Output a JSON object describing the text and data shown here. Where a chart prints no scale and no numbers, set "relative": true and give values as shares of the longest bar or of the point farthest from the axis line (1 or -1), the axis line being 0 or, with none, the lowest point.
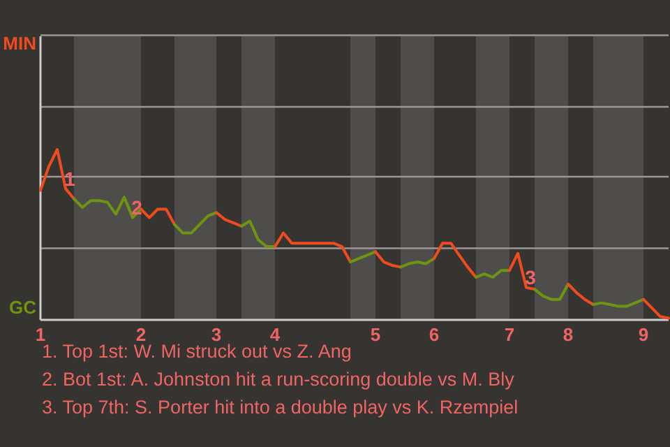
{
  "chart_data": {
    "type": "line",
    "relative": true,
    "categories": [
      "1",
      null,
      null,
      null,
      null,
      null,
      null,
      null,
      null,
      null,
      null,
      null,
      "2",
      null,
      null,
      null,
      null,
      null,
      null,
      null,
      null,
      "3",
      null,
      null,
      null,
      null,
      null,
      null,
      "4",
      null,
      null,
      null,
      null,
      null,
      null,
      null,
      null,
      null,
      null,
      null,
      "5",
      null,
      null,
      null,
      null,
      null,
      null,
      "6",
      null,
      null,
      null,
      null,
      null,
      null,
      null,
      null,
      "7",
      null,
      null,
      null,
      null,
      null,
      null,
      "8",
      null,
      null,
      null,
      null,
      null,
      null,
      null,
      null,
      "9",
      null,
      null,
      null
    ],
    "legend": "left",
    "marker": "none",
    "line_style": "solid",
    "ref_lines": [
      {
        "axis": "y",
        "value": 0.42,
        "color": "#9a9896"
      },
      {
        "axis": "y",
        "value": 0.84,
        "color": "#9a9896"
      },
      {
        "axis": "y",
        "value": 1.25,
        "color": "#9a9896"
      },
      {
        "axis": "y",
        "value": 1.67,
        "color": "#9a9896"
      }
    ],
    "series": [
      {
        "name": "MIN",
        "color": "#f04b1e",
        "values": [
          0.76,
          0.9,
          1,
          0.77,
          0.71,
          null,
          null,
          null,
          null,
          null,
          null,
          null,
          null,
          null,
          null,
          null,
          null,
          null,
          null,
          null,
          null,
          null,
          null,
          null,
          null,
          null,
          null,
          null,
          null,
          null,
          null,
          null,
          null,
          null,
          null,
          null,
          null,
          null,
          null,
          null,
          null,
          null,
          null,
          null,
          null,
          null,
          null,
          null,
          null,
          null,
          null,
          null,
          null,
          null,
          null,
          null,
          null,
          null,
          null,
          null,
          null,
          null,
          null,
          null,
          null,
          null,
          null,
          null,
          null,
          null,
          null,
          null,
          null,
          null,
          null,
          null
        ]
      },
      {
        "name": "GC",
        "color": "#6e9410",
        "values": [
          null,
          null,
          null,
          null,
          0.71,
          0.66,
          0.7,
          0.7,
          0.69,
          0.62,
          0.72,
          0.6,
          0.65,
          null,
          null,
          null,
          null,
          null,
          null,
          null,
          null,
          null,
          null,
          null,
          null,
          null,
          null,
          null,
          null,
          null,
          null,
          null,
          null,
          null,
          null,
          null,
          null,
          null,
          null,
          null,
          null,
          null,
          null,
          null,
          null,
          null,
          null,
          null,
          null,
          null,
          null,
          null,
          null,
          null,
          null,
          null,
          null,
          null,
          null,
          null,
          null,
          null,
          null,
          null,
          null,
          null,
          null,
          null,
          null,
          null,
          null,
          null,
          null,
          null,
          null,
          null
        ]
      },
      {
        "color": "#f04b1e",
        "values": [
          null,
          null,
          null,
          null,
          null,
          null,
          null,
          null,
          null,
          null,
          null,
          null,
          0.65,
          0.6,
          0.65,
          0.65,
          0.56,
          null,
          null,
          null,
          null,
          null,
          null,
          null,
          null,
          null,
          null,
          null,
          null,
          null,
          null,
          null,
          null,
          null,
          null,
          null,
          null,
          null,
          null,
          null,
          null,
          null,
          null,
          null,
          null,
          null,
          null,
          null,
          null,
          null,
          null,
          null,
          null,
          null,
          null,
          null,
          null,
          null,
          null,
          null,
          null,
          null,
          null,
          null,
          null,
          null,
          null,
          null,
          null,
          null,
          null,
          null,
          null,
          null,
          null,
          null
        ]
      },
      {
        "color": "#6e9410",
        "values": [
          null,
          null,
          null,
          null,
          null,
          null,
          null,
          null,
          null,
          null,
          null,
          null,
          null,
          null,
          null,
          null,
          0.56,
          0.51,
          0.51,
          0.56,
          0.61,
          0.63,
          null,
          null,
          null,
          null,
          null,
          null,
          null,
          null,
          null,
          null,
          null,
          null,
          null,
          null,
          null,
          null,
          null,
          null,
          null,
          null,
          null,
          null,
          null,
          null,
          null,
          null,
          null,
          null,
          null,
          null,
          null,
          null,
          null,
          null,
          null,
          null,
          null,
          null,
          null,
          null,
          null,
          null,
          null,
          null,
          null,
          null,
          null,
          null,
          null,
          null,
          null,
          null,
          null,
          null
        ]
      },
      {
        "color": "#f04b1e",
        "values": [
          null,
          null,
          null,
          null,
          null,
          null,
          null,
          null,
          null,
          null,
          null,
          null,
          null,
          null,
          null,
          null,
          null,
          null,
          null,
          null,
          null,
          0.63,
          0.59,
          0.57,
          0.55,
          null,
          null,
          null,
          null,
          null,
          null,
          null,
          null,
          null,
          null,
          null,
          null,
          null,
          null,
          null,
          null,
          null,
          null,
          null,
          null,
          null,
          null,
          null,
          null,
          null,
          null,
          null,
          null,
          null,
          null,
          null,
          null,
          null,
          null,
          null,
          null,
          null,
          null,
          null,
          null,
          null,
          null,
          null,
          null,
          null,
          null,
          null,
          null,
          null,
          null,
          null
        ]
      },
      {
        "color": "#6e9410",
        "values": [
          null,
          null,
          null,
          null,
          null,
          null,
          null,
          null,
          null,
          null,
          null,
          null,
          null,
          null,
          null,
          null,
          null,
          null,
          null,
          null,
          null,
          null,
          null,
          null,
          0.55,
          0.58,
          0.47,
          0.43,
          0.43,
          null,
          null,
          null,
          null,
          null,
          null,
          null,
          null,
          null,
          null,
          null,
          null,
          null,
          null,
          null,
          null,
          null,
          null,
          null,
          null,
          null,
          null,
          null,
          null,
          null,
          null,
          null,
          null,
          null,
          null,
          null,
          null,
          null,
          null,
          null,
          null,
          null,
          null,
          null,
          null,
          null,
          null,
          null,
          null,
          null,
          null,
          null
        ]
      },
      {
        "color": "#f04b1e",
        "values": [
          null,
          null,
          null,
          null,
          null,
          null,
          null,
          null,
          null,
          null,
          null,
          null,
          null,
          null,
          null,
          null,
          null,
          null,
          null,
          null,
          null,
          null,
          null,
          null,
          null,
          null,
          null,
          null,
          0.43,
          0.51,
          0.45,
          0.45,
          0.45,
          0.45,
          0.45,
          0.45,
          0.43,
          0.34,
          null,
          null,
          null,
          null,
          null,
          null,
          null,
          null,
          null,
          null,
          null,
          null,
          null,
          null,
          null,
          null,
          null,
          null,
          null,
          null,
          null,
          null,
          null,
          null,
          null,
          null,
          null,
          null,
          null,
          null,
          null,
          null,
          null,
          null,
          null,
          null,
          null,
          null
        ]
      },
      {
        "color": "#6e9410",
        "values": [
          null,
          null,
          null,
          null,
          null,
          null,
          null,
          null,
          null,
          null,
          null,
          null,
          null,
          null,
          null,
          null,
          null,
          null,
          null,
          null,
          null,
          null,
          null,
          null,
          null,
          null,
          null,
          null,
          null,
          null,
          null,
          null,
          null,
          null,
          null,
          null,
          null,
          0.34,
          0.36,
          0.38,
          0.4,
          null,
          null,
          null,
          null,
          null,
          null,
          null,
          null,
          null,
          null,
          null,
          null,
          null,
          null,
          null,
          null,
          null,
          null,
          null,
          null,
          null,
          null,
          null,
          null,
          null,
          null,
          null,
          null,
          null,
          null,
          null,
          null,
          null,
          null,
          null
        ]
      },
      {
        "color": "#f04b1e",
        "values": [
          null,
          null,
          null,
          null,
          null,
          null,
          null,
          null,
          null,
          null,
          null,
          null,
          null,
          null,
          null,
          null,
          null,
          null,
          null,
          null,
          null,
          null,
          null,
          null,
          null,
          null,
          null,
          null,
          null,
          null,
          null,
          null,
          null,
          null,
          null,
          null,
          null,
          null,
          null,
          null,
          0.4,
          0.34,
          0.32,
          0.31,
          null,
          null,
          null,
          null,
          null,
          null,
          null,
          null,
          null,
          null,
          null,
          null,
          null,
          null,
          null,
          null,
          null,
          null,
          null,
          null,
          null,
          null,
          null,
          null,
          null,
          null,
          null,
          null,
          null,
          null,
          null,
          null
        ]
      },
      {
        "color": "#6e9410",
        "values": [
          null,
          null,
          null,
          null,
          null,
          null,
          null,
          null,
          null,
          null,
          null,
          null,
          null,
          null,
          null,
          null,
          null,
          null,
          null,
          null,
          null,
          null,
          null,
          null,
          null,
          null,
          null,
          null,
          null,
          null,
          null,
          null,
          null,
          null,
          null,
          null,
          null,
          null,
          null,
          null,
          null,
          null,
          null,
          0.31,
          0.33,
          0.34,
          0.33,
          0.36,
          null,
          null,
          null,
          null,
          null,
          null,
          null,
          null,
          null,
          null,
          null,
          null,
          null,
          null,
          null,
          null,
          null,
          null,
          null,
          null,
          null,
          null,
          null,
          null,
          null,
          null,
          null,
          null
        ]
      },
      {
        "color": "#f04b1e",
        "values": [
          null,
          null,
          null,
          null,
          null,
          null,
          null,
          null,
          null,
          null,
          null,
          null,
          null,
          null,
          null,
          null,
          null,
          null,
          null,
          null,
          null,
          null,
          null,
          null,
          null,
          null,
          null,
          null,
          null,
          null,
          null,
          null,
          null,
          null,
          null,
          null,
          null,
          null,
          null,
          null,
          null,
          null,
          null,
          null,
          null,
          null,
          null,
          0.36,
          0.45,
          0.45,
          0.38,
          0.31,
          0.25,
          null,
          null,
          null,
          null,
          null,
          null,
          null,
          null,
          null,
          null,
          null,
          null,
          null,
          null,
          null,
          null,
          null,
          null,
          null,
          null,
          null,
          null,
          null
        ]
      },
      {
        "color": "#6e9410",
        "values": [
          null,
          null,
          null,
          null,
          null,
          null,
          null,
          null,
          null,
          null,
          null,
          null,
          null,
          null,
          null,
          null,
          null,
          null,
          null,
          null,
          null,
          null,
          null,
          null,
          null,
          null,
          null,
          null,
          null,
          null,
          null,
          null,
          null,
          null,
          null,
          null,
          null,
          null,
          null,
          null,
          null,
          null,
          null,
          null,
          null,
          null,
          null,
          null,
          null,
          null,
          null,
          null,
          0.25,
          0.27,
          0.25,
          0.29,
          0.29,
          null,
          null,
          null,
          null,
          null,
          null,
          null,
          null,
          null,
          null,
          null,
          null,
          null,
          null,
          null,
          null,
          null,
          null,
          null
        ]
      },
      {
        "color": "#f04b1e",
        "values": [
          null,
          null,
          null,
          null,
          null,
          null,
          null,
          null,
          null,
          null,
          null,
          null,
          null,
          null,
          null,
          null,
          null,
          null,
          null,
          null,
          null,
          null,
          null,
          null,
          null,
          null,
          null,
          null,
          null,
          null,
          null,
          null,
          null,
          null,
          null,
          null,
          null,
          null,
          null,
          null,
          null,
          null,
          null,
          null,
          null,
          null,
          null,
          null,
          null,
          null,
          null,
          null,
          null,
          null,
          null,
          null,
          0.29,
          0.39,
          0.19,
          0.18,
          null,
          null,
          null,
          null,
          null,
          null,
          null,
          null,
          null,
          null,
          null,
          null,
          null,
          null,
          null,
          null
        ]
      },
      {
        "color": "#6e9410",
        "values": [
          null,
          null,
          null,
          null,
          null,
          null,
          null,
          null,
          null,
          null,
          null,
          null,
          null,
          null,
          null,
          null,
          null,
          null,
          null,
          null,
          null,
          null,
          null,
          null,
          null,
          null,
          null,
          null,
          null,
          null,
          null,
          null,
          null,
          null,
          null,
          null,
          null,
          null,
          null,
          null,
          null,
          null,
          null,
          null,
          null,
          null,
          null,
          null,
          null,
          null,
          null,
          null,
          null,
          null,
          null,
          null,
          null,
          null,
          null,
          0.18,
          0.14,
          0.12,
          0.12,
          0.21,
          null,
          null,
          null,
          null,
          null,
          null,
          null,
          null,
          null,
          null,
          null,
          null
        ]
      },
      {
        "color": "#f04b1e",
        "values": [
          null,
          null,
          null,
          null,
          null,
          null,
          null,
          null,
          null,
          null,
          null,
          null,
          null,
          null,
          null,
          null,
          null,
          null,
          null,
          null,
          null,
          null,
          null,
          null,
          null,
          null,
          null,
          null,
          null,
          null,
          null,
          null,
          null,
          null,
          null,
          null,
          null,
          null,
          null,
          null,
          null,
          null,
          null,
          null,
          null,
          null,
          null,
          null,
          null,
          null,
          null,
          null,
          null,
          null,
          null,
          null,
          null,
          null,
          null,
          null,
          null,
          null,
          null,
          0.21,
          0.16,
          0.12,
          0.09,
          null,
          null,
          null,
          null,
          null,
          null,
          null,
          null,
          null
        ]
      },
      {
        "color": "#6e9410",
        "values": [
          null,
          null,
          null,
          null,
          null,
          null,
          null,
          null,
          null,
          null,
          null,
          null,
          null,
          null,
          null,
          null,
          null,
          null,
          null,
          null,
          null,
          null,
          null,
          null,
          null,
          null,
          null,
          null,
          null,
          null,
          null,
          null,
          null,
          null,
          null,
          null,
          null,
          null,
          null,
          null,
          null,
          null,
          null,
          null,
          null,
          null,
          null,
          null,
          null,
          null,
          null,
          null,
          null,
          null,
          null,
          null,
          null,
          null,
          null,
          null,
          null,
          null,
          null,
          null,
          null,
          null,
          0.09,
          0.1,
          0.09,
          0.08,
          0.08,
          0.1,
          0.12,
          null,
          null,
          null
        ]
      },
      {
        "color": "#f04b1e",
        "values": [
          null,
          null,
          null,
          null,
          null,
          null,
          null,
          null,
          null,
          null,
          null,
          null,
          null,
          null,
          null,
          null,
          null,
          null,
          null,
          null,
          null,
          null,
          null,
          null,
          null,
          null,
          null,
          null,
          null,
          null,
          null,
          null,
          null,
          null,
          null,
          null,
          null,
          null,
          null,
          null,
          null,
          null,
          null,
          null,
          null,
          null,
          null,
          null,
          null,
          null,
          null,
          null,
          null,
          null,
          null,
          null,
          null,
          null,
          null,
          null,
          null,
          null,
          null,
          null,
          null,
          null,
          null,
          null,
          null,
          null,
          null,
          null,
          0.12,
          0.07,
          0.02,
          0.01
        ]
      }
    ],
    "annotations": [
      {
        "text": "1",
        "y": 0.77
      },
      {
        "text": "2",
        "y": 0.6
      },
      {
        "text": "3",
        "y": 0.19
      },
      "1. Top 1st: W. Mi struck out vs Z. Ang",
      "2. Bot 1st: A. Johnston hit a run-scoring double vs M. Bly",
      "3. Top 7th: S. Porter hit into a double play vs K. Rzempiel"
    ]
  }
}
